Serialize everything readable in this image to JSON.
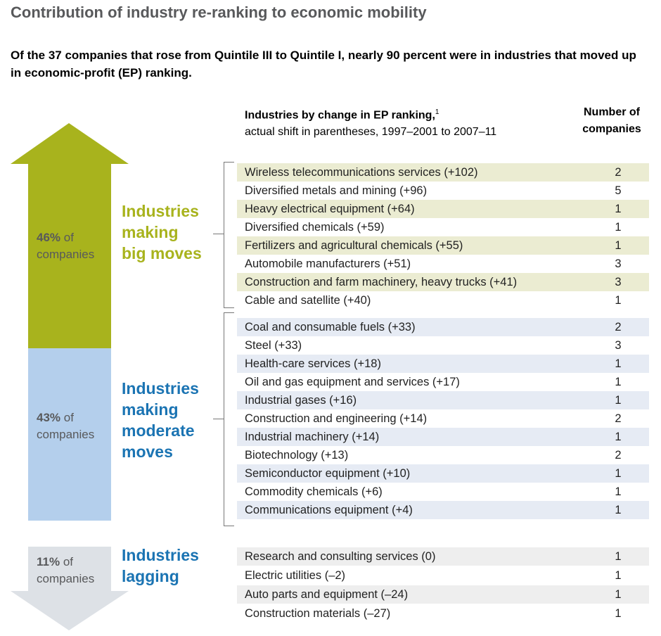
{
  "title": "Contribution of industry re-ranking to economic mobility",
  "subtitle": "Of the 37 companies that rose from Quintile III to Quintile I, nearly 90 percent were in industries that moved up in economic-profit (EP) ranking.",
  "columns": {
    "industry_header": "Industries by change in EP ranking,",
    "industry_header_footnote": "1",
    "industry_subheader": "actual shift in parentheses, 1997–2001 to 2007–11",
    "count_header_line1": "Number of",
    "count_header_line2": "companies"
  },
  "colors": {
    "green_arrow": "#a8b31d",
    "blue_bar": "#b4cfec",
    "gray_arrow": "#dde1e6",
    "green_text": "#a8b31d",
    "blue_text": "#1b74b3",
    "green_row": "#ebecd2",
    "blue_row": "#e6ebf4",
    "gray_row": "#eeeeee"
  },
  "groups": [
    {
      "pct_value": "46%",
      "pct_of": "of",
      "pct_label": "companies",
      "label_lines": [
        "Industries",
        "making",
        "big moves"
      ],
      "color": "#a8b31d"
    },
    {
      "pct_value": "43%",
      "pct_of": "of",
      "pct_label": "companies",
      "label_lines": [
        "Industries",
        "making",
        "moderate",
        "moves"
      ],
      "color": "#1b74b3"
    },
    {
      "pct_value": "11%",
      "pct_of": "of",
      "pct_label": "companies",
      "label_lines": [
        "Industries",
        "lagging"
      ],
      "color": "#1b74b3"
    }
  ],
  "chart_data": {
    "type": "table",
    "title": "Contribution of industry re-ranking to economic mobility",
    "columns": [
      "Industries by change in EP ranking",
      "Number of companies"
    ],
    "group_shares": [
      {
        "group": "Industries making big moves",
        "percent": 46
      },
      {
        "group": "Industries making moderate moves",
        "percent": 43
      },
      {
        "group": "Industries lagging",
        "percent": 11
      }
    ],
    "rows": [
      {
        "group": 0,
        "industry": "Wireless telecommunications services (+102)",
        "shift": 102,
        "companies": 2
      },
      {
        "group": 0,
        "industry": "Diversified metals and mining (+96)",
        "shift": 96,
        "companies": 5
      },
      {
        "group": 0,
        "industry": "Heavy electrical equipment (+64)",
        "shift": 64,
        "companies": 1
      },
      {
        "group": 0,
        "industry": "Diversified chemicals (+59)",
        "shift": 59,
        "companies": 1
      },
      {
        "group": 0,
        "industry": "Fertilizers and agricultural chemicals (+55)",
        "shift": 55,
        "companies": 1
      },
      {
        "group": 0,
        "industry": "Automobile manufacturers (+51)",
        "shift": 51,
        "companies": 3
      },
      {
        "group": 0,
        "industry": "Construction and farm machinery, heavy trucks (+41)",
        "shift": 41,
        "companies": 3
      },
      {
        "group": 0,
        "industry": "Cable and satellite (+40)",
        "shift": 40,
        "companies": 1
      },
      {
        "group": 1,
        "industry": "Coal and consumable fuels (+33)",
        "shift": 33,
        "companies": 2
      },
      {
        "group": 1,
        "industry": "Steel (+33)",
        "shift": 33,
        "companies": 3
      },
      {
        "group": 1,
        "industry": "Health-care services (+18)",
        "shift": 18,
        "companies": 1
      },
      {
        "group": 1,
        "industry": "Oil and gas equipment and services (+17)",
        "shift": 17,
        "companies": 1
      },
      {
        "group": 1,
        "industry": "Industrial gases (+16)",
        "shift": 16,
        "companies": 1
      },
      {
        "group": 1,
        "industry": "Construction and engineering (+14)",
        "shift": 14,
        "companies": 2
      },
      {
        "group": 1,
        "industry": "Industrial machinery (+14)",
        "shift": 14,
        "companies": 1
      },
      {
        "group": 1,
        "industry": "Biotechnology (+13)",
        "shift": 13,
        "companies": 2
      },
      {
        "group": 1,
        "industry": "Semiconductor equipment (+10)",
        "shift": 10,
        "companies": 1
      },
      {
        "group": 1,
        "industry": "Commodity chemicals (+6)",
        "shift": 6,
        "companies": 1
      },
      {
        "group": 1,
        "industry": "Communications equipment (+4)",
        "shift": 4,
        "companies": 1
      },
      {
        "group": 2,
        "industry": "Research and consulting services (0)",
        "shift": 0,
        "companies": 1
      },
      {
        "group": 2,
        "industry": "Electric utilities (–2)",
        "shift": -2,
        "companies": 1
      },
      {
        "group": 2,
        "industry": "Auto parts and equipment (–24)",
        "shift": -24,
        "companies": 1
      },
      {
        "group": 2,
        "industry": "Construction materials (–27)",
        "shift": -27,
        "companies": 1
      }
    ]
  }
}
